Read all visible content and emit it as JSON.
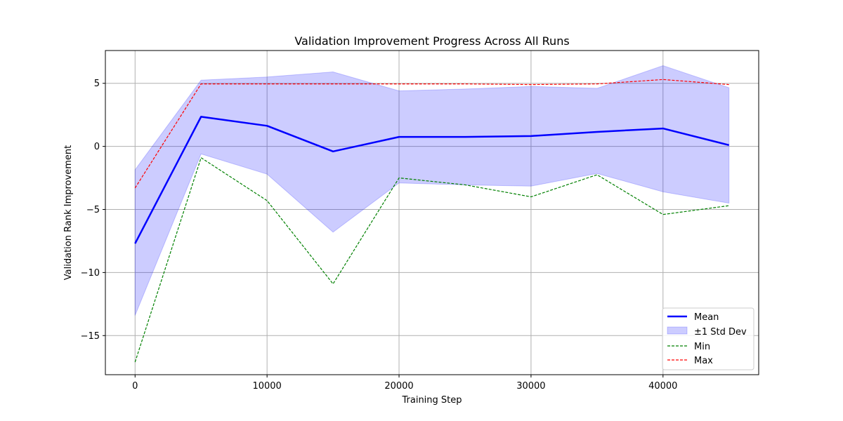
{
  "chart_data": {
    "type": "line",
    "title": "Validation Improvement Progress Across All Runs",
    "xlabel": "Training Step",
    "ylabel": "Validation Rank Improvement",
    "x": [
      0,
      5000,
      10000,
      15000,
      20000,
      25000,
      30000,
      35000,
      40000,
      45000
    ],
    "xlim": [
      -2250,
      47250
    ],
    "ylim": [
      -18.1,
      7.6
    ],
    "xticks": [
      0,
      10000,
      20000,
      30000,
      40000
    ],
    "yticks": [
      5,
      0,
      -5,
      -10,
      -15
    ],
    "ytick_labels": [
      "5",
      "0",
      "−5",
      "−10",
      "−15"
    ],
    "grid": true,
    "legend_position": "lower-right",
    "series": [
      {
        "name": "Mean",
        "style": "solid",
        "color": "#0000ff",
        "values": [
          -7.7,
          2.35,
          1.63,
          -0.4,
          0.75,
          0.75,
          0.82,
          1.15,
          1.42,
          0.1
        ]
      },
      {
        "name": "Min",
        "style": "dashed",
        "color": "#008000",
        "values": [
          -17.1,
          -0.9,
          -4.3,
          -10.9,
          -2.5,
          -3.05,
          -4.0,
          -2.25,
          -5.4,
          -4.7
        ]
      },
      {
        "name": "Max",
        "style": "dashed",
        "color": "#ff0000",
        "values": [
          -3.3,
          4.95,
          4.95,
          4.95,
          4.95,
          4.95,
          4.9,
          4.95,
          5.3,
          4.9
        ]
      }
    ],
    "band": {
      "name": "±1 Std Dev",
      "color": "#0000ff",
      "lower": [
        -13.4,
        -0.6,
        -2.2,
        -6.8,
        -2.9,
        -3.05,
        -3.15,
        -2.15,
        -3.6,
        -4.5
      ],
      "upper": [
        -1.85,
        5.25,
        5.5,
        5.9,
        4.4,
        4.55,
        4.75,
        4.6,
        6.4,
        4.65
      ]
    },
    "legend": [
      "Mean",
      "±1 Std Dev",
      "Min",
      "Max"
    ]
  }
}
